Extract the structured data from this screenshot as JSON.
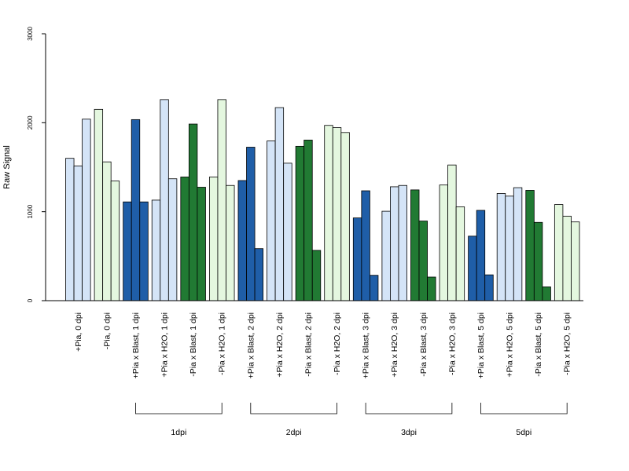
{
  "chart_data": {
    "type": "bar",
    "ylabel": "Raw Signal",
    "xlabel": "",
    "ylim": [
      0,
      3000
    ],
    "yticks": [
      0,
      1000,
      2000,
      3000
    ],
    "colors": {
      "light_blue": "#d4e4f7",
      "dark_blue": "#1f5ea8",
      "light_green": "#e4f7df",
      "dark_green": "#217a33",
      "border": "#000000"
    },
    "categories": [
      {
        "label": "+Pia, 0 dpi",
        "color": "light_blue",
        "values": [
          1600,
          1515,
          2040
        ]
      },
      {
        "label": "-Pia, 0 dpi",
        "color": "light_green",
        "values": [
          2150,
          1560,
          1345
        ]
      },
      {
        "label": "+Pia x Blast, 1 dpi",
        "color": "dark_blue",
        "values": [
          1110,
          2035,
          1110
        ]
      },
      {
        "label": "+Pia x H2O, 1 dpi",
        "color": "light_blue",
        "values": [
          1130,
          2260,
          1370
        ]
      },
      {
        "label": "-Pia x Blast, 1 dpi",
        "color": "dark_green",
        "values": [
          1390,
          1985,
          1275
        ]
      },
      {
        "label": "-Pia x H2O, 1 dpi",
        "color": "light_green",
        "values": [
          1390,
          2260,
          1295
        ]
      },
      {
        "label": "+Pia x Blast, 2 dpi",
        "color": "dark_blue",
        "values": [
          1350,
          1725,
          585
        ]
      },
      {
        "label": "+Pia x H2O, 2 dpi",
        "color": "light_blue",
        "values": [
          1795,
          2170,
          1545
        ]
      },
      {
        "label": "-Pia x Blast, 2 dpi",
        "color": "dark_green",
        "values": [
          1735,
          1805,
          565
        ]
      },
      {
        "label": "-Pia x H2O, 2 dpi",
        "color": "light_green",
        "values": [
          1970,
          1945,
          1890
        ]
      },
      {
        "label": "+Pia x Blast, 3 dpi",
        "color": "dark_blue",
        "values": [
          930,
          1235,
          285
        ]
      },
      {
        "label": "+Pia x H2O, 3 dpi",
        "color": "light_blue",
        "values": [
          1005,
          1280,
          1295
        ]
      },
      {
        "label": "-Pia x Blast, 3 dpi",
        "color": "dark_green",
        "values": [
          1245,
          895,
          265
        ]
      },
      {
        "label": "-Pia x H2O, 3 dpi",
        "color": "light_green",
        "values": [
          1300,
          1525,
          1055
        ]
      },
      {
        "label": "+Pia x Blast, 5 dpi",
        "color": "dark_blue",
        "values": [
          725,
          1015,
          290
        ]
      },
      {
        "label": "+Pia x H2O, 5 dpi",
        "color": "light_blue",
        "values": [
          1205,
          1175,
          1270
        ]
      },
      {
        "label": "-Pia x Blast, 5 dpi",
        "color": "dark_green",
        "values": [
          1240,
          880,
          155
        ]
      },
      {
        "label": "-Pia x H2O, 5 dpi",
        "color": "light_green",
        "values": [
          1080,
          950,
          885
        ]
      }
    ],
    "groups": [
      {
        "label": "1dpi",
        "first": 2,
        "last": 5
      },
      {
        "label": "2dpi",
        "first": 6,
        "last": 9
      },
      {
        "label": "3dpi",
        "first": 10,
        "last": 13
      },
      {
        "label": "5dpi",
        "first": 14,
        "last": 17
      }
    ],
    "grid": false,
    "legend": "none"
  }
}
